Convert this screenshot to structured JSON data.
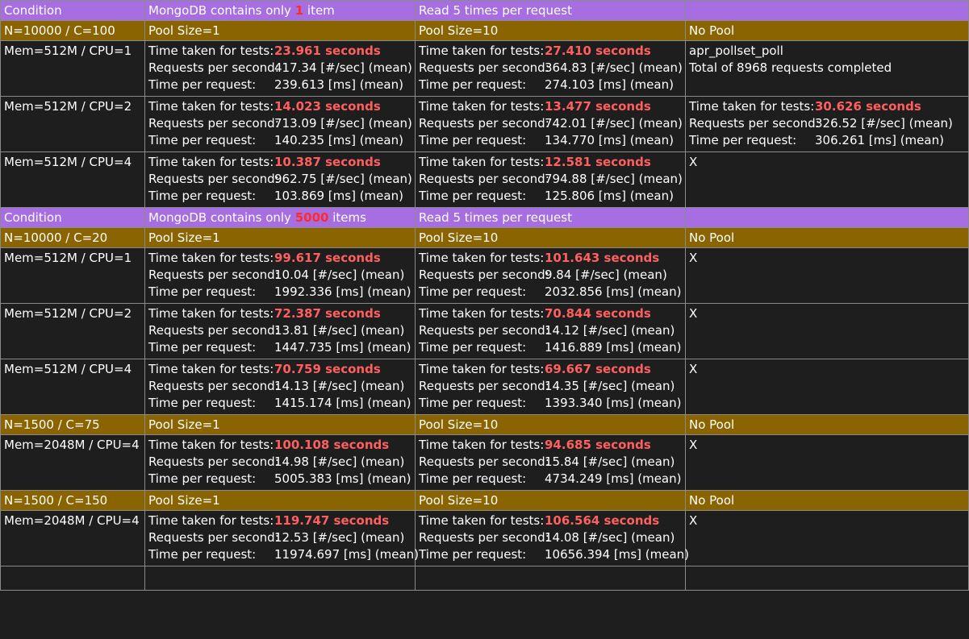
{
  "table": {
    "sections": [
      {
        "header": {
          "condition": "Condition",
          "col1_pre": "MongoDB contains only ",
          "col1_hl": "1",
          "col1_post": " item",
          "col2": "Read 5 times per request",
          "col3": ""
        },
        "groups": [
          {
            "pool": {
              "cond": "N=10000 / C=100",
              "p1": "Pool Size=1",
              "p10": "Pool Size=10",
              "np": "No Pool"
            },
            "rows": [
              {
                "cond": "Mem=512M / CPU=1",
                "p1": {
                  "time_taken": "23.961 seconds",
                  "rps": "417.34 [#/sec] (mean)",
                  "tpr": "239.613 [ms] (mean)"
                },
                "p10": {
                  "time_taken": "27.410 seconds",
                  "rps": "364.83 [#/sec] (mean)",
                  "tpr": "274.103 [ms] (mean)"
                },
                "np_text": [
                  "apr_pollset_poll",
                  "Total of 8968 requests completed"
                ]
              },
              {
                "cond": "Mem=512M / CPU=2",
                "p1": {
                  "time_taken": "14.023 seconds",
                  "rps": "713.09 [#/sec] (mean)",
                  "tpr": "140.235 [ms] (mean)"
                },
                "p10": {
                  "time_taken": "13.477 seconds",
                  "rps": "742.01 [#/sec] (mean)",
                  "tpr": "134.770 [ms] (mean)"
                },
                "np": {
                  "time_taken": "30.626 seconds",
                  "rps": "326.52 [#/sec] (mean)",
                  "tpr": "306.261 [ms] (mean)"
                }
              },
              {
                "cond": "Mem=512M / CPU=4",
                "p1": {
                  "time_taken": "10.387 seconds",
                  "rps": "962.75 [#/sec] (mean)",
                  "tpr": "103.869 [ms] (mean)"
                },
                "p10": {
                  "time_taken": "12.581 seconds",
                  "rps": "794.88 [#/sec] (mean)",
                  "tpr": "125.806 [ms] (mean)"
                },
                "np_text": [
                  "X"
                ]
              }
            ]
          }
        ]
      },
      {
        "header": {
          "condition": "Condition",
          "col1_pre": "MongoDB contains only ",
          "col1_hl": "5000",
          "col1_post": " items",
          "col2": "Read 5 times per request",
          "col3": ""
        },
        "groups": [
          {
            "pool": {
              "cond": "N=10000 / C=20",
              "p1": "Pool Size=1",
              "p10": "Pool Size=10",
              "np": "No Pool"
            },
            "rows": [
              {
                "cond": "Mem=512M / CPU=1",
                "p1": {
                  "time_taken": "99.617 seconds",
                  "rps": "10.04 [#/sec] (mean)",
                  "tpr": "1992.336 [ms] (mean)"
                },
                "p10": {
                  "time_taken": "101.643 seconds",
                  "rps": "9.84 [#/sec] (mean)",
                  "tpr": "2032.856 [ms] (mean)"
                },
                "np_text": [
                  "X"
                ]
              },
              {
                "cond": "Mem=512M / CPU=2",
                "p1": {
                  "time_taken": "72.387 seconds",
                  "rps": "13.81 [#/sec] (mean)",
                  "tpr": "1447.735 [ms] (mean)"
                },
                "p10": {
                  "time_taken": "70.844 seconds",
                  "rps": "14.12 [#/sec] (mean)",
                  "tpr": "1416.889 [ms] (mean)"
                },
                "np_text": [
                  "X"
                ]
              },
              {
                "cond": "Mem=512M / CPU=4",
                "p1": {
                  "time_taken": "70.759 seconds",
                  "rps": "14.13 [#/sec] (mean)",
                  "tpr": "1415.174 [ms] (mean)"
                },
                "p10": {
                  "time_taken": "69.667 seconds",
                  "rps": "14.35 [#/sec] (mean)",
                  "tpr": "1393.340 [ms] (mean)"
                },
                "np_text": [
                  "X"
                ]
              }
            ]
          },
          {
            "pool": {
              "cond": "N=1500 / C=75",
              "p1": "Pool Size=1",
              "p10": "Pool Size=10",
              "np": "No Pool"
            },
            "rows": [
              {
                "cond": "Mem=2048M / CPU=4",
                "p1": {
                  "time_taken": "100.108 seconds",
                  "rps": "14.98 [#/sec] (mean)",
                  "tpr": "5005.383 [ms] (mean)"
                },
                "p10": {
                  "time_taken": "94.685 seconds",
                  "rps": "15.84 [#/sec] (mean)",
                  "tpr": "4734.249 [ms] (mean)"
                },
                "np_text": [
                  "X"
                ]
              }
            ]
          },
          {
            "pool": {
              "cond": "N=1500 / C=150",
              "p1": "Pool Size=1",
              "p10": "Pool Size=10",
              "np": "No Pool"
            },
            "rows": [
              {
                "cond": "Mem=2048M / CPU=4",
                "p1": {
                  "time_taken": "119.747 seconds",
                  "rps": "12.53 [#/sec] (mean)",
                  "tpr": "11974.697 [ms] (mean)"
                },
                "p10": {
                  "time_taken": "106.564 seconds",
                  "rps": "14.08 [#/sec] (mean)",
                  "tpr": "10656.394 [ms] (mean)"
                },
                "np_text": [
                  "X"
                ]
              }
            ]
          }
        ]
      }
    ],
    "labels": {
      "time_taken": "Time taken for tests:",
      "rps": "Requests per second:",
      "tpr": "Time per request:"
    },
    "empty_row": [
      "",
      "",
      "",
      ""
    ]
  },
  "colors": {
    "header_bg": "#a66ee0",
    "pool_bg": "#8a6400",
    "body_bg": "#1e1e1e",
    "highlight": "#ff5f5f"
  }
}
